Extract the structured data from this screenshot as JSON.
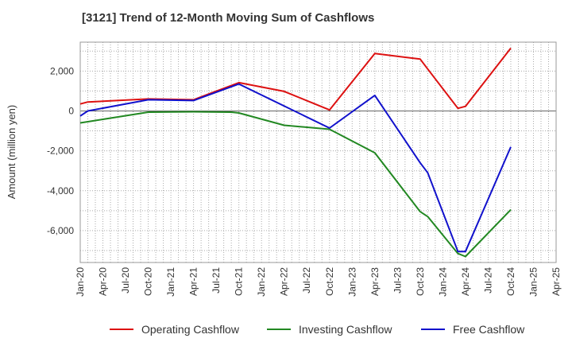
{
  "chart_data": {
    "type": "line",
    "title": "[3121]  Trend of 12-Month Moving Sum of Cashflows",
    "xlabel": "",
    "ylabel": "Amount (million yen)",
    "x_ticks": [
      "Jan-20",
      "Apr-20",
      "Jul-20",
      "Oct-20",
      "Jan-21",
      "Apr-21",
      "Jul-21",
      "Oct-21",
      "Jan-22",
      "Apr-22",
      "Jul-22",
      "Oct-22",
      "Jan-23",
      "Apr-23",
      "Jul-23",
      "Oct-23",
      "Jan-24",
      "Apr-24",
      "Jul-24",
      "Oct-24",
      "Jan-25",
      "Apr-25"
    ],
    "y_ticks": [
      2000,
      0,
      -2000,
      -4000,
      -6000
    ],
    "y_tick_labels": [
      "2,000",
      "0",
      "-2,000",
      "-4,000",
      "-6,000"
    ],
    "ylim": [
      -7600,
      3450
    ],
    "grid": true,
    "legend_position": "bottom",
    "series": [
      {
        "name": "Operating Cashflow",
        "color": "#dd1111",
        "points": [
          [
            "Jan-20",
            350
          ],
          [
            "Feb-20",
            450
          ],
          [
            "Oct-20",
            600
          ],
          [
            "Apr-21",
            560
          ],
          [
            "Oct-21",
            1420
          ],
          [
            "Apr-22",
            980
          ],
          [
            "Oct-22",
            50
          ],
          [
            "Apr-23",
            2880
          ],
          [
            "Oct-23",
            2600
          ],
          [
            "Nov-23",
            2100
          ],
          [
            "Mar-24",
            130
          ],
          [
            "Apr-24",
            230
          ],
          [
            "Oct-24",
            3150
          ]
        ]
      },
      {
        "name": "Investing Cashflow",
        "color": "#228822",
        "points": [
          [
            "Jan-20",
            -600
          ],
          [
            "Apr-20",
            -420
          ],
          [
            "Oct-20",
            -60
          ],
          [
            "Apr-21",
            -40
          ],
          [
            "Sep-21",
            -60
          ],
          [
            "Oct-21",
            -100
          ],
          [
            "Apr-22",
            -720
          ],
          [
            "Oct-22",
            -920
          ],
          [
            "Apr-23",
            -2100
          ],
          [
            "Oct-23",
            -5050
          ],
          [
            "Nov-23",
            -5300
          ],
          [
            "Mar-24",
            -7150
          ],
          [
            "Apr-24",
            -7300
          ],
          [
            "Oct-24",
            -4950
          ]
        ]
      },
      {
        "name": "Free Cashflow",
        "color": "#1111cc",
        "points": [
          [
            "Jan-20",
            -250
          ],
          [
            "Feb-20",
            0
          ],
          [
            "Oct-20",
            560
          ],
          [
            "Apr-21",
            520
          ],
          [
            "Oct-21",
            1350
          ],
          [
            "Oct-22",
            -860
          ],
          [
            "Apr-23",
            780
          ],
          [
            "Oct-23",
            -2600
          ],
          [
            "Nov-23",
            -3100
          ],
          [
            "Mar-24",
            -7050
          ],
          [
            "Apr-24",
            -7050
          ],
          [
            "Oct-24",
            -1800
          ]
        ]
      }
    ]
  }
}
